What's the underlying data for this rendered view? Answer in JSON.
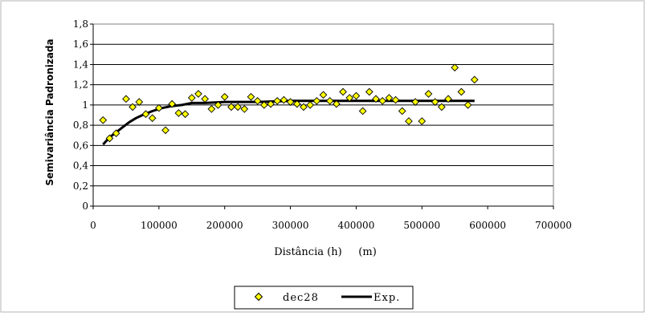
{
  "chart_data": {
    "type": "scatter",
    "xlabel": "Distância (h)     (m)",
    "ylabel": "Semivariância Padronizada",
    "xlim": [
      0,
      700000
    ],
    "ylim": [
      0,
      1.8
    ],
    "x_ticks": [
      "0",
      "100000",
      "200000",
      "300000",
      "400000",
      "500000",
      "600000",
      "700000"
    ],
    "y_ticks": [
      "0",
      "0,2",
      "0,4",
      "0,6",
      "0,8",
      "1",
      "1,2",
      "1,4",
      "1,6",
      "1,8"
    ],
    "grid": "horizontal",
    "legend_position": "bottom",
    "series": [
      {
        "name": "dec28",
        "kind": "scatter",
        "marker": "diamond",
        "color": "#ffff00",
        "edge_color": "#000000",
        "points": [
          [
            15000,
            0.85
          ],
          [
            25000,
            0.67
          ],
          [
            35000,
            0.72
          ],
          [
            50000,
            1.06
          ],
          [
            60000,
            0.98
          ],
          [
            70000,
            1.03
          ],
          [
            80000,
            0.91
          ],
          [
            90000,
            0.87
          ],
          [
            100000,
            0.97
          ],
          [
            110000,
            0.75
          ],
          [
            120000,
            1.01
          ],
          [
            130000,
            0.92
          ],
          [
            140000,
            0.91
          ],
          [
            150000,
            1.07
          ],
          [
            160000,
            1.11
          ],
          [
            170000,
            1.06
          ],
          [
            180000,
            0.96
          ],
          [
            190000,
            1.0
          ],
          [
            200000,
            1.08
          ],
          [
            210000,
            0.98
          ],
          [
            220000,
            0.98
          ],
          [
            230000,
            0.96
          ],
          [
            240000,
            1.08
          ],
          [
            250000,
            1.04
          ],
          [
            260000,
            1.0
          ],
          [
            270000,
            1.01
          ],
          [
            280000,
            1.04
          ],
          [
            290000,
            1.05
          ],
          [
            300000,
            1.03
          ],
          [
            310000,
            1.01
          ],
          [
            320000,
            0.98
          ],
          [
            330000,
            1.0
          ],
          [
            340000,
            1.04
          ],
          [
            350000,
            1.1
          ],
          [
            360000,
            1.04
          ],
          [
            370000,
            1.01
          ],
          [
            380000,
            1.13
          ],
          [
            390000,
            1.07
          ],
          [
            400000,
            1.09
          ],
          [
            410000,
            0.94
          ],
          [
            420000,
            1.13
          ],
          [
            430000,
            1.06
          ],
          [
            440000,
            1.04
          ],
          [
            450000,
            1.07
          ],
          [
            460000,
            1.05
          ],
          [
            470000,
            0.94
          ],
          [
            480000,
            0.84
          ],
          [
            490000,
            1.03
          ],
          [
            500000,
            0.84
          ],
          [
            510000,
            1.11
          ],
          [
            520000,
            1.03
          ],
          [
            530000,
            0.98
          ],
          [
            540000,
            1.06
          ],
          [
            550000,
            1.37
          ],
          [
            560000,
            1.13
          ],
          [
            570000,
            1.0
          ],
          [
            580000,
            1.25
          ]
        ]
      },
      {
        "name": "Exp.",
        "kind": "line",
        "color": "#000000",
        "points": [
          [
            15000,
            0.61
          ],
          [
            25000,
            0.68
          ],
          [
            35000,
            0.73
          ],
          [
            45000,
            0.78
          ],
          [
            55000,
            0.83
          ],
          [
            65000,
            0.87
          ],
          [
            75000,
            0.9
          ],
          [
            90000,
            0.94
          ],
          [
            105000,
            0.97
          ],
          [
            120000,
            0.99
          ],
          [
            135000,
            1.0
          ],
          [
            150000,
            1.02
          ],
          [
            170000,
            1.02
          ],
          [
            200000,
            1.03
          ],
          [
            250000,
            1.03
          ],
          [
            300000,
            1.04
          ],
          [
            350000,
            1.04
          ],
          [
            400000,
            1.04
          ],
          [
            450000,
            1.04
          ],
          [
            500000,
            1.04
          ],
          [
            550000,
            1.04
          ],
          [
            580000,
            1.04
          ]
        ]
      }
    ]
  }
}
